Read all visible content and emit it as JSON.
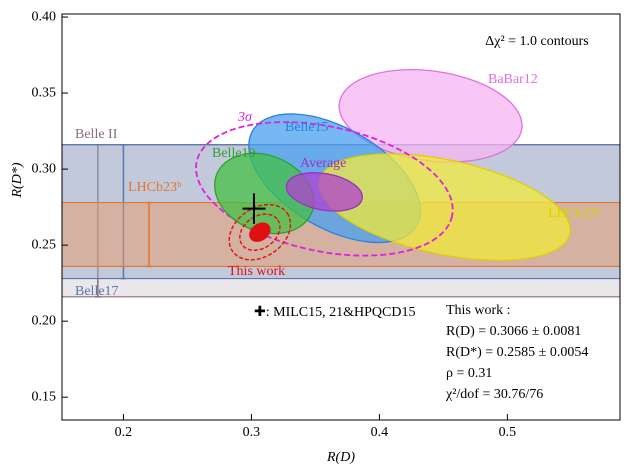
{
  "chart_data": {
    "type": "contour",
    "xlabel": "R(D)",
    "ylabel": "R(D*)",
    "xlim": [
      0.152,
      0.588
    ],
    "ylim": [
      0.135,
      0.402
    ],
    "xticks": [
      0.2,
      0.3,
      0.4,
      0.5
    ],
    "yticks": [
      0.15,
      {
        "value": 0.2,
        "label": "0.20"
      },
      0.25,
      {
        "value": 0.3,
        "label": "0.30"
      },
      0.35,
      {
        "value": 0.4,
        "label": "0.40"
      }
    ],
    "annotation": "Δχ² = 1.0 contours",
    "bands": [
      {
        "name": "Belle II",
        "range": [
          0.216,
          0.316
        ],
        "x": 0.18,
        "color": "#8a7070",
        "fill": "#d4d0d4"
      },
      {
        "name": "Belle17",
        "range": [
          0.228,
          0.316
        ],
        "x": 0.2,
        "color": "#5a78b0",
        "fill": "#9aaccc"
      },
      {
        "name": "LHCb23ᵇ",
        "range": [
          0.236,
          0.278
        ],
        "x": 0.22,
        "color": "#e8742c",
        "fill": "#e89a66"
      }
    ],
    "ellipses": [
      {
        "name": "BaBar12",
        "center": [
          0.44,
          0.335
        ],
        "radii": [
          0.072,
          0.0295
        ],
        "angle": 8,
        "color": "#e070e0",
        "fill": "#f6b4f2",
        "dashed": false
      },
      {
        "name": "Belle15",
        "center": [
          0.365,
          0.294
        ],
        "radii": [
          0.074,
          0.033
        ],
        "angle": 30,
        "color": "#2a80e0",
        "fill": "#4aa0f0",
        "dashed": false
      },
      {
        "name": "LHCb23ᵃ",
        "center": [
          0.451,
          0.275
        ],
        "radii": [
          0.1,
          0.031
        ],
        "angle": 12,
        "color": "#e0d000",
        "fill": "#f2ea3c",
        "dashed": false
      },
      {
        "name": "3σ",
        "center": [
          0.357,
          0.287
        ],
        "radii": [
          0.102,
          0.041
        ],
        "angle": 12,
        "color": "#e020e0",
        "fill": "none",
        "dashed": true
      },
      {
        "name": "Belle19",
        "center": [
          0.31,
          0.284
        ],
        "radii": [
          0.04,
          0.025
        ],
        "angle": 22,
        "color": "#30a030",
        "fill": "#44c044",
        "dashed": false
      },
      {
        "name": "Average",
        "center": [
          0.357,
          0.285
        ],
        "radii": [
          0.03,
          0.012
        ],
        "angle": 10,
        "color": "#a030c0",
        "fill": "#b040d0",
        "dashed": false
      }
    ],
    "this_work": {
      "name": "This work",
      "center": [
        0.3066,
        0.2585
      ],
      "angle": -35,
      "color": "#e01010",
      "contours": [
        [
          0.0085,
          0.0052
        ],
        [
          0.017,
          0.0105
        ],
        [
          0.026,
          0.016
        ]
      ]
    },
    "point": {
      "x": 0.302,
      "y": 0.274,
      "xerr": 0.009,
      "yerr": 0.01,
      "legend": "✚: MILC15, 21&HPQCD15"
    },
    "results": [
      "This work :",
      "R(D) = 0.3066 ± 0.0081",
      "R(D*) = 0.2585 ± 0.0054",
      "ρ = 0.31",
      "χ²/dof = 30.76/76"
    ]
  }
}
